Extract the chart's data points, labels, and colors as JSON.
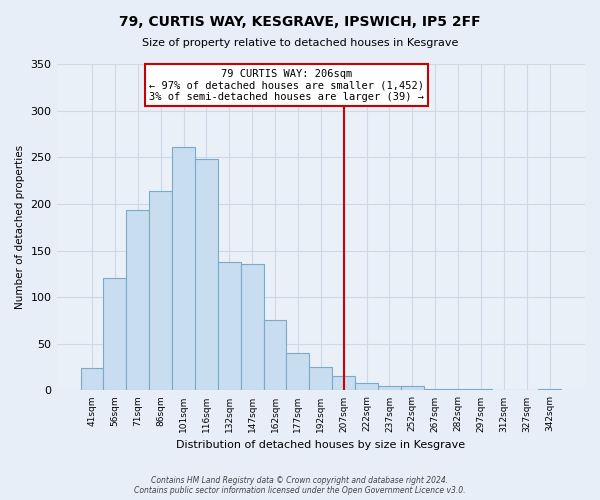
{
  "title": "79, CURTIS WAY, KESGRAVE, IPSWICH, IP5 2FF",
  "subtitle": "Size of property relative to detached houses in Kesgrave",
  "xlabel": "Distribution of detached houses by size in Kesgrave",
  "ylabel": "Number of detached properties",
  "bar_labels": [
    "41sqm",
    "56sqm",
    "71sqm",
    "86sqm",
    "101sqm",
    "116sqm",
    "132sqm",
    "147sqm",
    "162sqm",
    "177sqm",
    "192sqm",
    "207sqm",
    "222sqm",
    "237sqm",
    "252sqm",
    "267sqm",
    "282sqm",
    "297sqm",
    "312sqm",
    "327sqm",
    "342sqm"
  ],
  "bar_values": [
    24,
    121,
    193,
    214,
    261,
    248,
    138,
    136,
    75,
    40,
    25,
    15,
    8,
    5,
    5,
    2,
    1,
    1,
    0,
    0,
    1
  ],
  "bar_color": "#c8ddef",
  "bar_edge_color": "#7aaac8",
  "vline_index": 11,
  "annotation_title": "79 CURTIS WAY: 206sqm",
  "annotation_line1": "← 97% of detached houses are smaller (1,452)",
  "annotation_line2": "3% of semi-detached houses are larger (39) →",
  "vline_color": "#cc0000",
  "annotation_box_edge": "#cc0000",
  "ylim": [
    0,
    350
  ],
  "yticks": [
    0,
    50,
    100,
    150,
    200,
    250,
    300,
    350
  ],
  "grid_color": "#d0d8e8",
  "footer1": "Contains HM Land Registry data © Crown copyright and database right 2024.",
  "footer2": "Contains public sector information licensed under the Open Government Licence v3.0.",
  "background_color": "#e8eef8",
  "plot_bg_color": "#eaf0f8"
}
